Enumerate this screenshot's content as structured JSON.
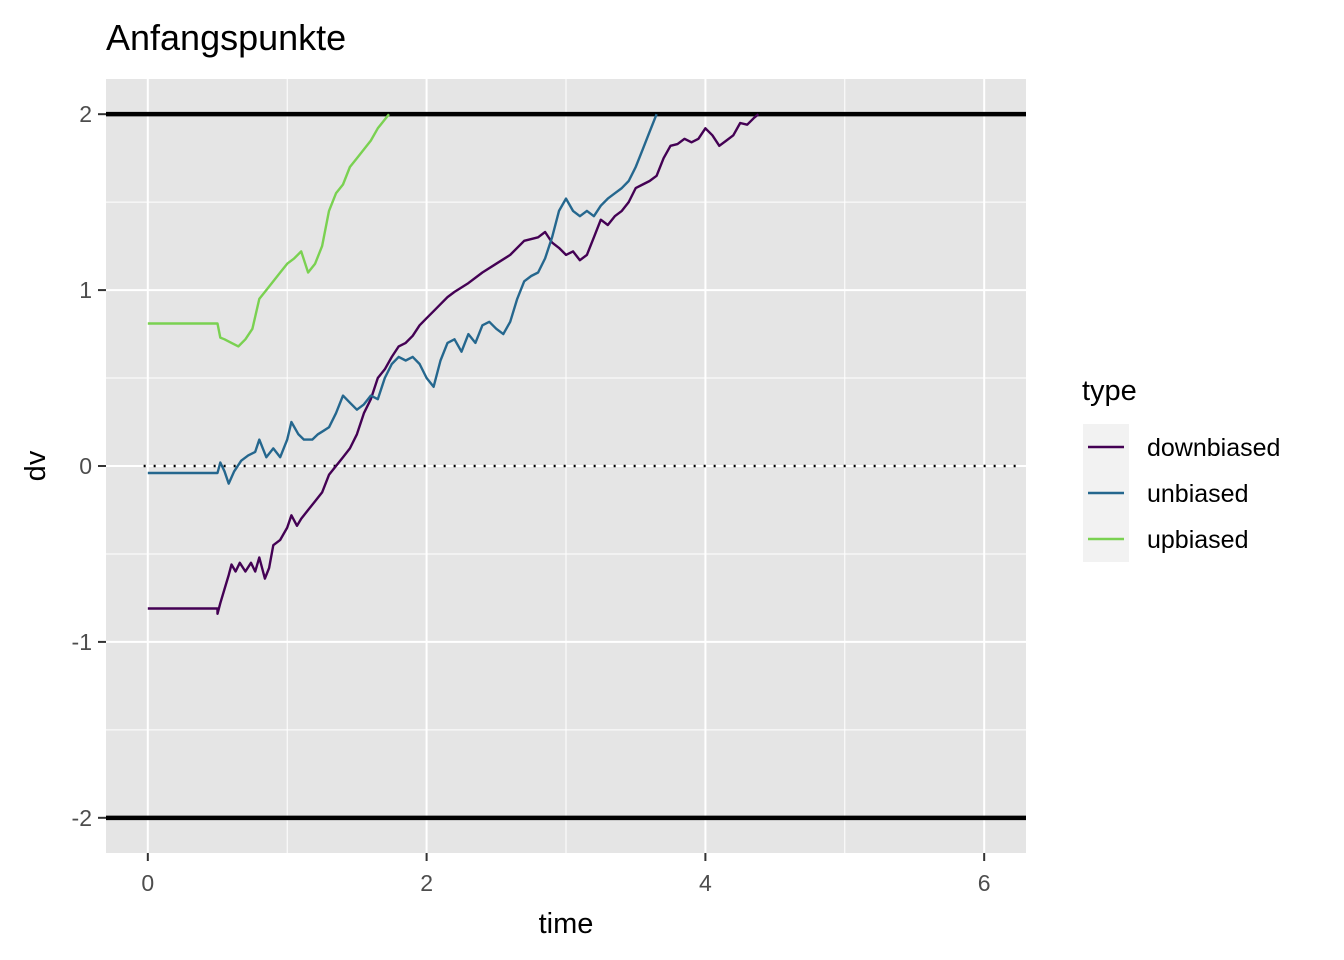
{
  "chart_data": {
    "type": "line",
    "title": "Anfangspunkte",
    "xlabel": "time",
    "ylabel": "dv",
    "xlim": [
      -0.3,
      6.3
    ],
    "ylim": [
      -2.2,
      2.2
    ],
    "x_ticks": [
      0,
      2,
      4,
      6
    ],
    "y_ticks": [
      -2,
      -1,
      0,
      1,
      2
    ],
    "x_tick_labels": [
      "0",
      "2",
      "4",
      "6"
    ],
    "y_tick_labels": [
      "-2",
      "-1",
      "0",
      "1",
      "2"
    ],
    "grid": true,
    "background_color": "#e5e5e5",
    "hlines": [
      {
        "y": 2,
        "style": "solid",
        "color": "#000000"
      },
      {
        "y": -2,
        "style": "solid",
        "color": "#000000"
      },
      {
        "y": 0,
        "style": "dotted",
        "color": "#000000"
      }
    ],
    "legend": {
      "title": "type",
      "position": "right",
      "entries": [
        "downbiased",
        "unbiased",
        "upbiased"
      ]
    },
    "series": [
      {
        "name": "downbiased",
        "color": "#440154",
        "points": [
          [
            0,
            -0.81
          ],
          [
            0.5,
            -0.81
          ],
          [
            0.5,
            -0.84
          ],
          [
            0.52,
            -0.78
          ],
          [
            0.55,
            -0.7
          ],
          [
            0.58,
            -0.62
          ],
          [
            0.6,
            -0.56
          ],
          [
            0.63,
            -0.6
          ],
          [
            0.66,
            -0.55
          ],
          [
            0.7,
            -0.6
          ],
          [
            0.74,
            -0.55
          ],
          [
            0.77,
            -0.6
          ],
          [
            0.8,
            -0.52
          ],
          [
            0.84,
            -0.64
          ],
          [
            0.87,
            -0.58
          ],
          [
            0.9,
            -0.45
          ],
          [
            0.95,
            -0.42
          ],
          [
            1.0,
            -0.35
          ],
          [
            1.03,
            -0.28
          ],
          [
            1.07,
            -0.34
          ],
          [
            1.1,
            -0.3
          ],
          [
            1.15,
            -0.25
          ],
          [
            1.2,
            -0.2
          ],
          [
            1.25,
            -0.15
          ],
          [
            1.3,
            -0.05
          ],
          [
            1.35,
            0.0
          ],
          [
            1.4,
            0.05
          ],
          [
            1.45,
            0.1
          ],
          [
            1.5,
            0.18
          ],
          [
            1.55,
            0.3
          ],
          [
            1.6,
            0.38
          ],
          [
            1.65,
            0.5
          ],
          [
            1.7,
            0.55
          ],
          [
            1.75,
            0.62
          ],
          [
            1.8,
            0.68
          ],
          [
            1.85,
            0.7
          ],
          [
            1.9,
            0.74
          ],
          [
            1.95,
            0.8
          ],
          [
            2.0,
            0.84
          ],
          [
            2.05,
            0.88
          ],
          [
            2.1,
            0.92
          ],
          [
            2.15,
            0.96
          ],
          [
            2.2,
            0.99
          ],
          [
            2.3,
            1.04
          ],
          [
            2.4,
            1.1
          ],
          [
            2.5,
            1.15
          ],
          [
            2.6,
            1.2
          ],
          [
            2.7,
            1.28
          ],
          [
            2.8,
            1.3
          ],
          [
            2.85,
            1.33
          ],
          [
            2.9,
            1.27
          ],
          [
            2.95,
            1.24
          ],
          [
            3.0,
            1.2
          ],
          [
            3.05,
            1.22
          ],
          [
            3.1,
            1.17
          ],
          [
            3.15,
            1.2
          ],
          [
            3.2,
            1.3
          ],
          [
            3.25,
            1.4
          ],
          [
            3.3,
            1.37
          ],
          [
            3.35,
            1.42
          ],
          [
            3.4,
            1.45
          ],
          [
            3.45,
            1.5
          ],
          [
            3.5,
            1.58
          ],
          [
            3.55,
            1.6
          ],
          [
            3.6,
            1.62
          ],
          [
            3.65,
            1.65
          ],
          [
            3.7,
            1.75
          ],
          [
            3.75,
            1.82
          ],
          [
            3.8,
            1.83
          ],
          [
            3.85,
            1.86
          ],
          [
            3.9,
            1.84
          ],
          [
            3.95,
            1.86
          ],
          [
            4.0,
            1.92
          ],
          [
            4.05,
            1.88
          ],
          [
            4.1,
            1.82
          ],
          [
            4.15,
            1.85
          ],
          [
            4.2,
            1.88
          ],
          [
            4.25,
            1.95
          ],
          [
            4.3,
            1.94
          ],
          [
            4.35,
            1.98
          ],
          [
            4.38,
            2.0
          ]
        ]
      },
      {
        "name": "unbiased",
        "color": "#25678e",
        "points": [
          [
            0,
            -0.04
          ],
          [
            0.5,
            -0.04
          ],
          [
            0.52,
            0.02
          ],
          [
            0.55,
            -0.03
          ],
          [
            0.58,
            -0.1
          ],
          [
            0.62,
            -0.03
          ],
          [
            0.67,
            0.03
          ],
          [
            0.72,
            0.06
          ],
          [
            0.77,
            0.08
          ],
          [
            0.8,
            0.15
          ],
          [
            0.85,
            0.05
          ],
          [
            0.9,
            0.1
          ],
          [
            0.95,
            0.05
          ],
          [
            1.0,
            0.15
          ],
          [
            1.03,
            0.25
          ],
          [
            1.08,
            0.18
          ],
          [
            1.12,
            0.15
          ],
          [
            1.18,
            0.15
          ],
          [
            1.22,
            0.18
          ],
          [
            1.26,
            0.2
          ],
          [
            1.3,
            0.22
          ],
          [
            1.35,
            0.3
          ],
          [
            1.4,
            0.4
          ],
          [
            1.45,
            0.36
          ],
          [
            1.5,
            0.32
          ],
          [
            1.55,
            0.35
          ],
          [
            1.6,
            0.4
          ],
          [
            1.65,
            0.38
          ],
          [
            1.7,
            0.5
          ],
          [
            1.75,
            0.58
          ],
          [
            1.8,
            0.62
          ],
          [
            1.85,
            0.6
          ],
          [
            1.9,
            0.62
          ],
          [
            1.95,
            0.58
          ],
          [
            2.0,
            0.5
          ],
          [
            2.05,
            0.45
          ],
          [
            2.1,
            0.6
          ],
          [
            2.15,
            0.7
          ],
          [
            2.2,
            0.72
          ],
          [
            2.25,
            0.65
          ],
          [
            2.3,
            0.75
          ],
          [
            2.35,
            0.7
          ],
          [
            2.4,
            0.8
          ],
          [
            2.45,
            0.82
          ],
          [
            2.5,
            0.78
          ],
          [
            2.55,
            0.75
          ],
          [
            2.6,
            0.82
          ],
          [
            2.65,
            0.95
          ],
          [
            2.7,
            1.05
          ],
          [
            2.75,
            1.08
          ],
          [
            2.8,
            1.1
          ],
          [
            2.85,
            1.18
          ],
          [
            2.9,
            1.3
          ],
          [
            2.95,
            1.45
          ],
          [
            3.0,
            1.52
          ],
          [
            3.05,
            1.45
          ],
          [
            3.1,
            1.42
          ],
          [
            3.15,
            1.45
          ],
          [
            3.2,
            1.42
          ],
          [
            3.25,
            1.48
          ],
          [
            3.3,
            1.52
          ],
          [
            3.35,
            1.55
          ],
          [
            3.4,
            1.58
          ],
          [
            3.45,
            1.62
          ],
          [
            3.5,
            1.7
          ],
          [
            3.55,
            1.8
          ],
          [
            3.6,
            1.9
          ],
          [
            3.65,
            2.0
          ]
        ]
      },
      {
        "name": "upbiased",
        "color": "#7ad151",
        "points": [
          [
            0,
            0.81
          ],
          [
            0.5,
            0.81
          ],
          [
            0.52,
            0.73
          ],
          [
            0.55,
            0.72
          ],
          [
            0.6,
            0.7
          ],
          [
            0.65,
            0.68
          ],
          [
            0.7,
            0.72
          ],
          [
            0.75,
            0.78
          ],
          [
            0.8,
            0.95
          ],
          [
            0.85,
            1.0
          ],
          [
            0.9,
            1.05
          ],
          [
            0.95,
            1.1
          ],
          [
            1.0,
            1.15
          ],
          [
            1.05,
            1.18
          ],
          [
            1.1,
            1.22
          ],
          [
            1.15,
            1.1
          ],
          [
            1.2,
            1.15
          ],
          [
            1.25,
            1.25
          ],
          [
            1.3,
            1.45
          ],
          [
            1.35,
            1.55
          ],
          [
            1.4,
            1.6
          ],
          [
            1.45,
            1.7
          ],
          [
            1.5,
            1.75
          ],
          [
            1.55,
            1.8
          ],
          [
            1.6,
            1.85
          ],
          [
            1.65,
            1.92
          ],
          [
            1.7,
            1.97
          ],
          [
            1.73,
            2.0
          ]
        ]
      }
    ]
  }
}
